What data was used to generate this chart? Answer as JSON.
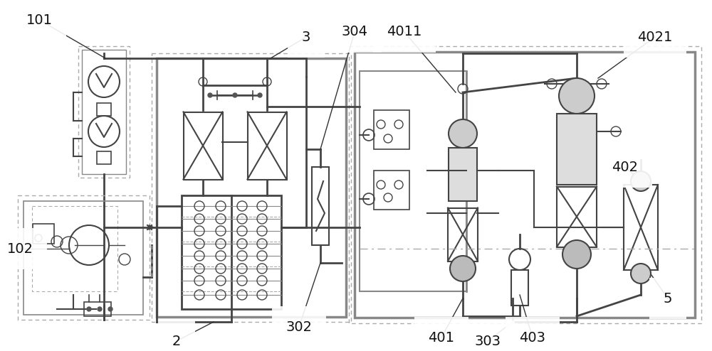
{
  "bg_color": "#ffffff",
  "lc": "#444444",
  "dc": "#999999",
  "gc": "#777777"
}
